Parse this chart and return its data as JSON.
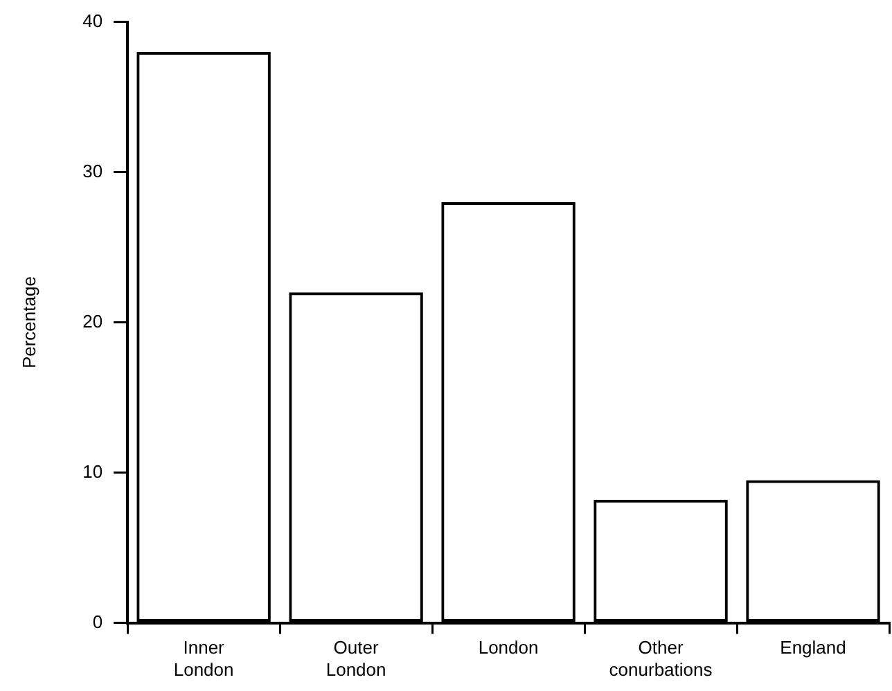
{
  "chart_data": {
    "type": "bar",
    "ylabel": "Percentage",
    "categories": [
      "Inner London",
      "Outer London",
      "London",
      "Other conurbations",
      "England"
    ],
    "values": [
      38,
      22,
      28,
      8.2,
      9.5
    ],
    "color": "#000000",
    "ylim": [
      0,
      40
    ],
    "yticks": [
      0,
      10,
      20,
      30,
      40
    ],
    "grid": false,
    "legend": false
  }
}
